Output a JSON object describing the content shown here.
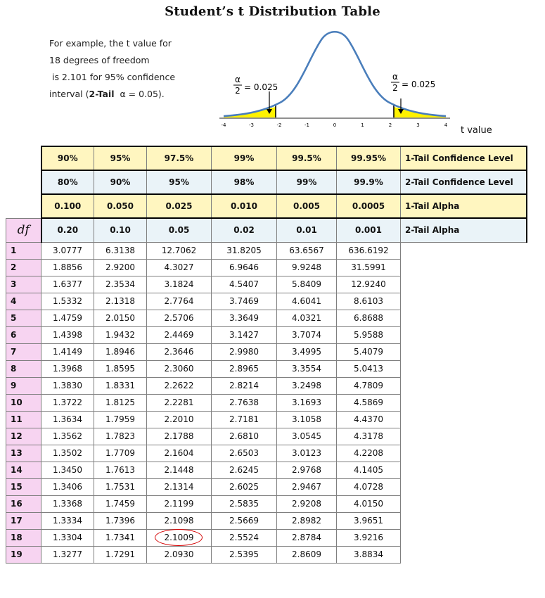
{
  "title": "Student’s t Distribution Table",
  "example_lines": [
    "For example, the t value for",
    "18 degrees of freedom",
    " is 2.101 for 95% confidence",
    "interval (",
    "2-Tail",
    "α = 0.05)."
  ],
  "curve": {
    "alpha": "α",
    "two": "2",
    "eq": "= 0.025",
    "ticks": [
      "-4",
      "-3",
      "-2",
      "-1",
      "0",
      "1",
      "2",
      "3",
      "4"
    ],
    "axis_label": "t value",
    "tail_color": "#fff200",
    "curve_color": "#4a7ebb"
  },
  "headers": [
    {
      "values": [
        "90%",
        "95%",
        "97.5%",
        "99%",
        "99.5%",
        "99.95%"
      ],
      "label_bold": "1-Tail",
      "label_rest": " Confidence Level"
    },
    {
      "values": [
        "80%",
        "90%",
        "95%",
        "98%",
        "99%",
        "99.9%"
      ],
      "label_bold": "2-Tail",
      "label_rest": " Confidence Level"
    },
    {
      "values": [
        "0.100",
        "0.050",
        "0.025",
        "0.010",
        "0.005",
        "0.0005"
      ],
      "label_bold": "1-Tail",
      "label_rest": " Alpha"
    },
    {
      "values": [
        "0.20",
        "0.10",
        "0.05",
        "0.02",
        "0.01",
        "0.001"
      ],
      "label_bold": "2-Tail",
      "label_rest": " Alpha"
    }
  ],
  "df_header": "df",
  "rows": [
    {
      "df": "1",
      "vals": [
        "3.0777",
        "6.3138",
        "12.7062",
        "31.8205",
        "63.6567",
        "636.6192"
      ]
    },
    {
      "df": "2",
      "vals": [
        "1.8856",
        "2.9200",
        "4.3027",
        "6.9646",
        "9.9248",
        "31.5991"
      ]
    },
    {
      "df": "3",
      "vals": [
        "1.6377",
        "2.3534",
        "3.1824",
        "4.5407",
        "5.8409",
        "12.9240"
      ]
    },
    {
      "df": "4",
      "vals": [
        "1.5332",
        "2.1318",
        "2.7764",
        "3.7469",
        "4.6041",
        "8.6103"
      ]
    },
    {
      "df": "5",
      "vals": [
        "1.4759",
        "2.0150",
        "2.5706",
        "3.3649",
        "4.0321",
        "6.8688"
      ]
    },
    {
      "df": "6",
      "vals": [
        "1.4398",
        "1.9432",
        "2.4469",
        "3.1427",
        "3.7074",
        "5.9588"
      ]
    },
    {
      "df": "7",
      "vals": [
        "1.4149",
        "1.8946",
        "2.3646",
        "2.9980",
        "3.4995",
        "5.4079"
      ]
    },
    {
      "df": "8",
      "vals": [
        "1.3968",
        "1.8595",
        "2.3060",
        "2.8965",
        "3.3554",
        "5.0413"
      ]
    },
    {
      "df": "9",
      "vals": [
        "1.3830",
        "1.8331",
        "2.2622",
        "2.8214",
        "3.2498",
        "4.7809"
      ]
    },
    {
      "df": "10",
      "vals": [
        "1.3722",
        "1.8125",
        "2.2281",
        "2.7638",
        "3.1693",
        "4.5869"
      ]
    },
    {
      "df": "11",
      "vals": [
        "1.3634",
        "1.7959",
        "2.2010",
        "2.7181",
        "3.1058",
        "4.4370"
      ]
    },
    {
      "df": "12",
      "vals": [
        "1.3562",
        "1.7823",
        "2.1788",
        "2.6810",
        "3.0545",
        "4.3178"
      ]
    },
    {
      "df": "13",
      "vals": [
        "1.3502",
        "1.7709",
        "2.1604",
        "2.6503",
        "3.0123",
        "4.2208"
      ]
    },
    {
      "df": "14",
      "vals": [
        "1.3450",
        "1.7613",
        "2.1448",
        "2.6245",
        "2.9768",
        "4.1405"
      ]
    },
    {
      "df": "15",
      "vals": [
        "1.3406",
        "1.7531",
        "2.1314",
        "2.6025",
        "2.9467",
        "4.0728"
      ]
    },
    {
      "df": "16",
      "vals": [
        "1.3368",
        "1.7459",
        "2.1199",
        "2.5835",
        "2.9208",
        "4.0150"
      ]
    },
    {
      "df": "17",
      "vals": [
        "1.3334",
        "1.7396",
        "2.1098",
        "2.5669",
        "2.8982",
        "3.9651"
      ]
    },
    {
      "df": "18",
      "vals": [
        "1.3304",
        "1.7341",
        "2.1009",
        "2.5524",
        "2.8784",
        "3.9216"
      ]
    },
    {
      "df": "19",
      "vals": [
        "1.3277",
        "1.7291",
        "2.0930",
        "2.5395",
        "2.8609",
        "3.8834"
      ]
    }
  ],
  "highlight_color": "#d40000"
}
